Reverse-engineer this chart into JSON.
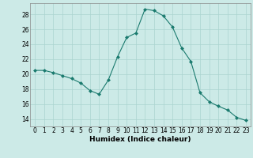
{
  "x": [
    0,
    1,
    2,
    3,
    4,
    5,
    6,
    7,
    8,
    9,
    10,
    11,
    12,
    13,
    14,
    15,
    16,
    17,
    18,
    19,
    20,
    21,
    22,
    23
  ],
  "y": [
    20.5,
    20.5,
    20.2,
    19.8,
    19.4,
    18.8,
    17.8,
    17.3,
    19.2,
    22.3,
    24.9,
    25.5,
    28.7,
    28.5,
    27.8,
    26.3,
    23.5,
    21.7,
    17.5,
    16.3,
    15.7,
    15.2,
    14.2,
    13.8
  ],
  "line_color": "#1a7a6e",
  "marker": "D",
  "marker_size": 2.0,
  "bg_color": "#cceae7",
  "grid_color": "#aad4d0",
  "xlabel": "Humidex (Indice chaleur)",
  "xlim": [
    -0.5,
    23.5
  ],
  "ylim": [
    13,
    29.5
  ],
  "yticks": [
    14,
    16,
    18,
    20,
    22,
    24,
    26,
    28
  ],
  "xticks": [
    0,
    1,
    2,
    3,
    4,
    5,
    6,
    7,
    8,
    9,
    10,
    11,
    12,
    13,
    14,
    15,
    16,
    17,
    18,
    19,
    20,
    21,
    22,
    23
  ],
  "xlabel_fontsize": 6.5,
  "tick_fontsize": 5.5
}
